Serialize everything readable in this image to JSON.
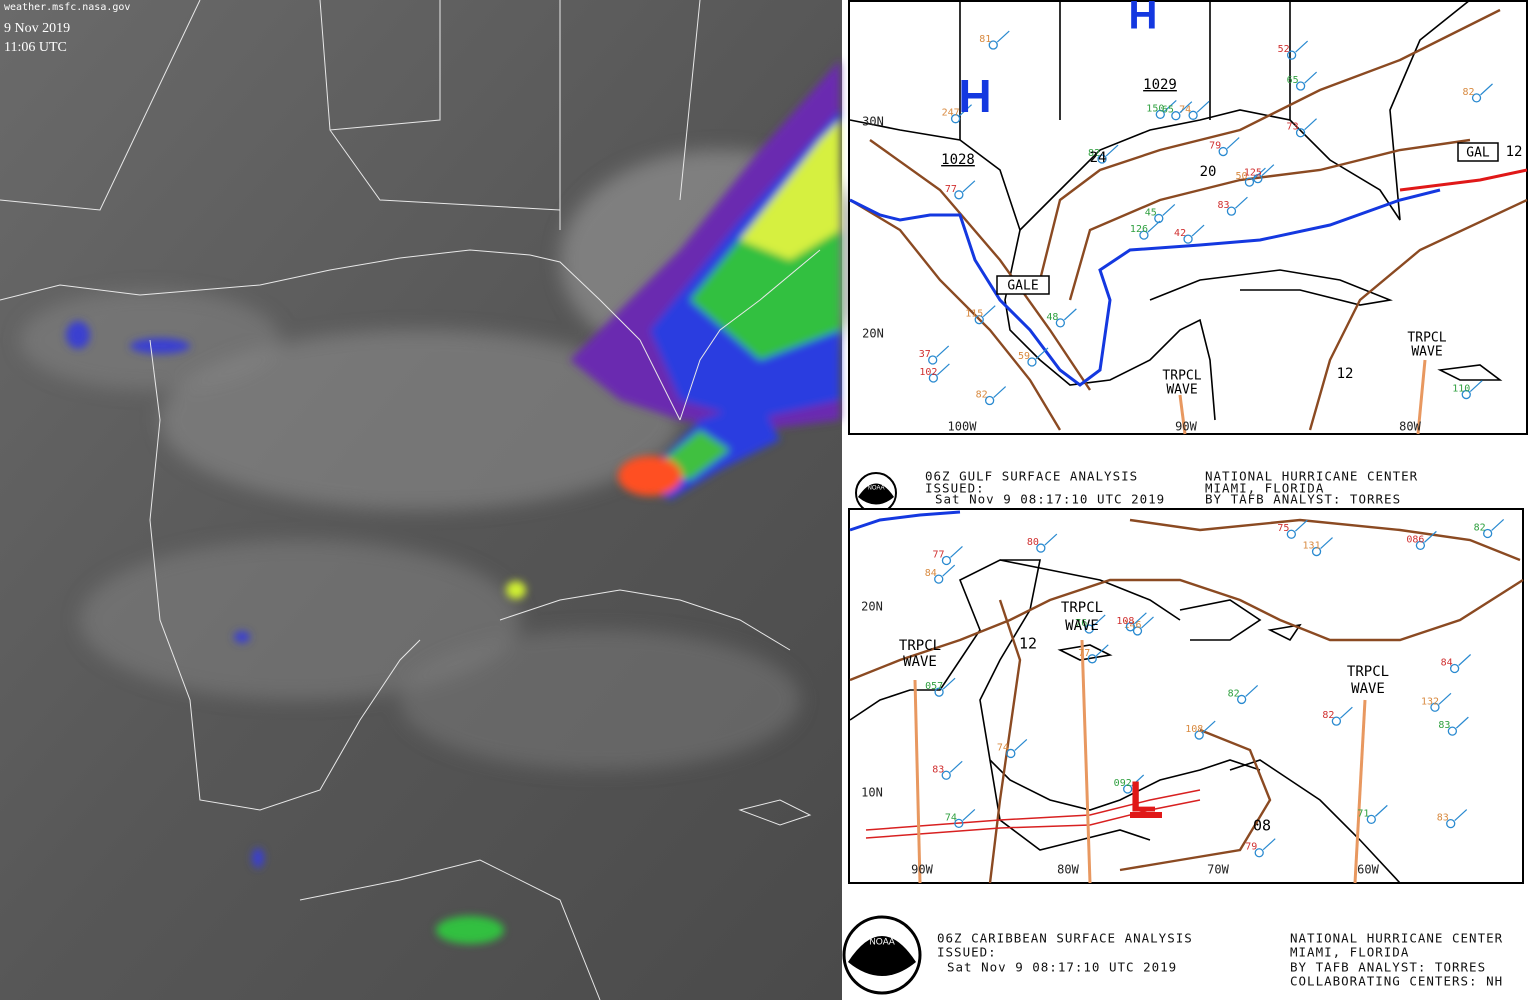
{
  "satellite": {
    "source": "weather.msfc.nasa.gov",
    "date": "9 Nov 2019",
    "time": "11:06 UTC"
  },
  "gulf_map": {
    "pressure_centers": [
      "H",
      "H"
    ],
    "isobars": [
      "1028",
      "1029",
      "24",
      "20",
      "12",
      "12"
    ],
    "warnings": [
      "GALE",
      "GAL"
    ],
    "waves": [
      [
        "TRPCL",
        "WAVE"
      ],
      [
        "TRPCL",
        "WAVE"
      ]
    ],
    "lat": [
      "30N",
      "20N"
    ],
    "lon": [
      "100W",
      "90W",
      "80W"
    ],
    "stations": [
      "42",
      "247",
      "45",
      "37",
      "50",
      "48",
      "52",
      "74",
      "65",
      "83",
      "81",
      "110",
      "77",
      "82",
      "126",
      "73",
      "82",
      "150",
      "79",
      "115",
      "82",
      "102",
      "59",
      "65",
      "125"
    ]
  },
  "gulf_header": {
    "logo": "NOAA",
    "title": "06Z GULF SURFACE ANALYSIS",
    "issued": "ISSUED:",
    "time": "Sat Nov 9 08:17:10 UTC 2019",
    "center": "NATIONAL HURRICANE CENTER",
    "location": "MIAMI, FLORIDA",
    "analyst": "BY TAFB ANALYST: TORRES"
  },
  "caribbean_map": {
    "pressure_centers": [
      "L"
    ],
    "isobars": [
      "12",
      "08"
    ],
    "waves": [
      [
        "TRPCL",
        "WAVE"
      ],
      [
        "TRPCL",
        "WAVE"
      ],
      [
        "TRPCL",
        "WAVE"
      ]
    ],
    "lat": [
      "20N",
      "10N"
    ],
    "lon": [
      "90W",
      "80W",
      "70W",
      "60W"
    ],
    "stations": [
      "82",
      "132",
      "74",
      "80",
      "146",
      "71",
      "83",
      "131",
      "76",
      "79",
      "84",
      "057",
      "77",
      "83",
      "092",
      "84",
      "108",
      "82",
      "108",
      "74",
      "82",
      "086",
      "77",
      "83",
      "75"
    ]
  },
  "caribbean_header": {
    "logo": "NOAA",
    "title": "06Z CARIBBEAN SURFACE ANALYSIS",
    "issued": "ISSUED:",
    "time": "Sat Nov 9 08:17:10 UTC 2019",
    "center": "NATIONAL HURRICANE CENTER",
    "location": "MIAMI, FLORIDA",
    "analyst": "BY TAFB ANALYST: TORRES",
    "collab": "COLLABORATING CENTERS: NH"
  }
}
